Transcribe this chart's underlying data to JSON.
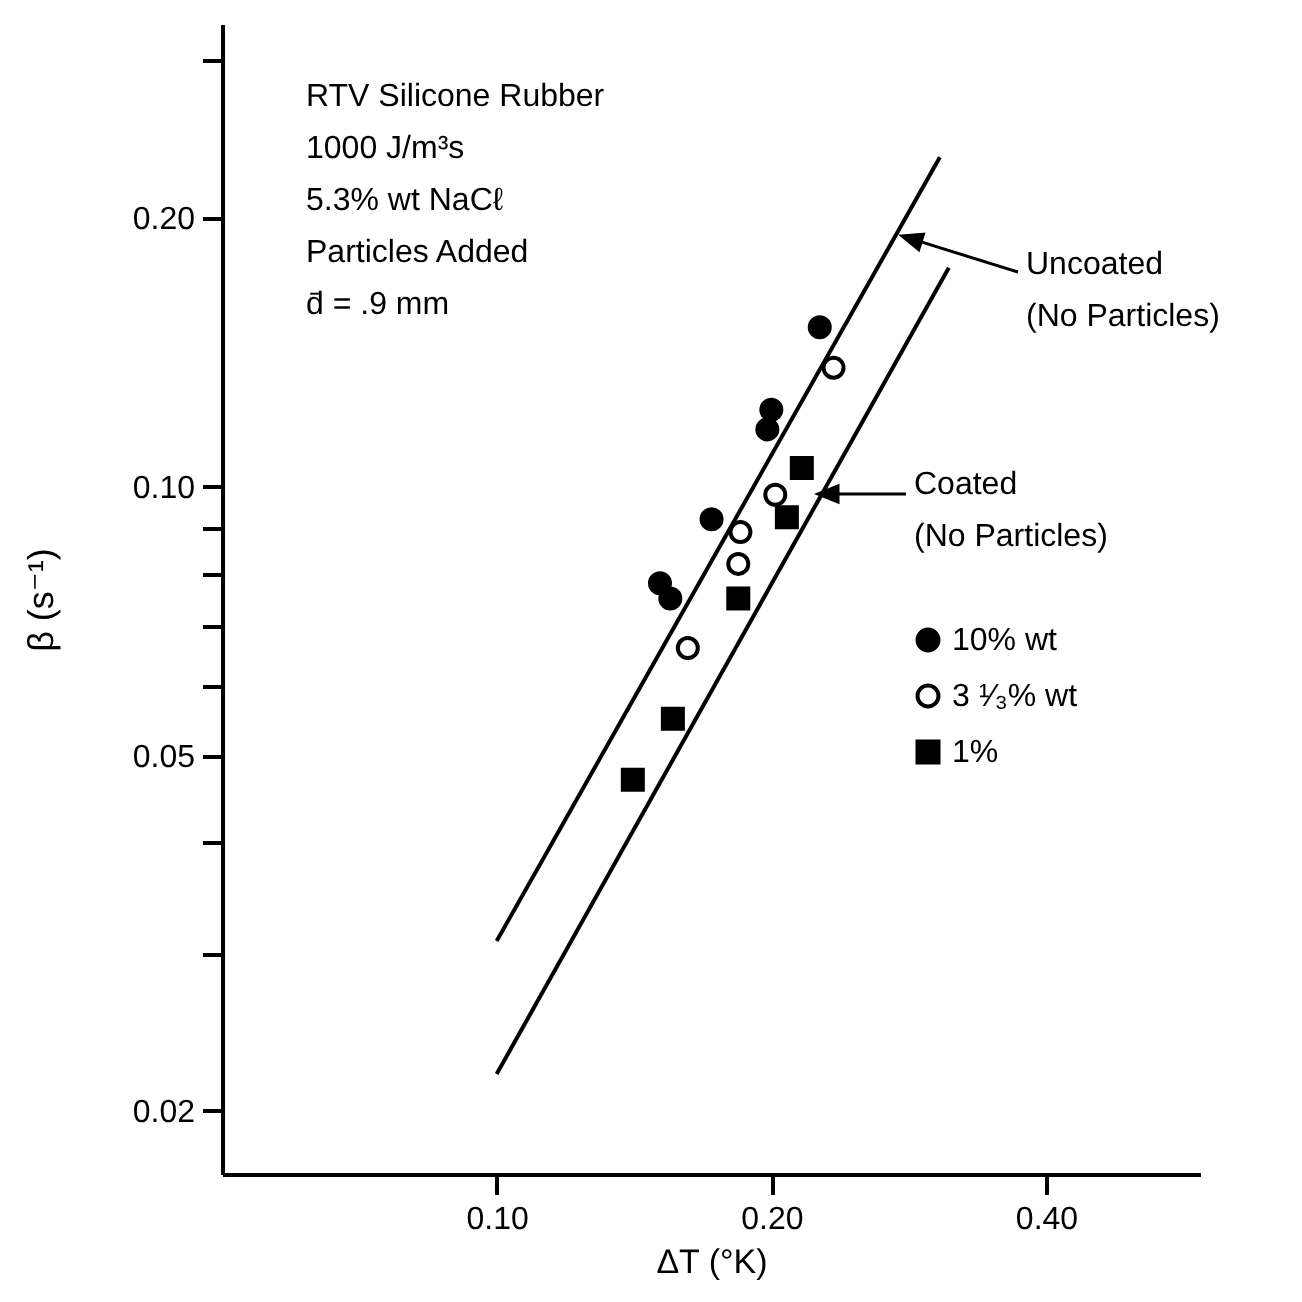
{
  "chart_data": {
    "type": "scatter",
    "log": "xy",
    "xlabel": "ΔT (°K)",
    "ylabel": "β (s⁻¹)",
    "xlim": [
      0.05,
      0.59
    ],
    "ylim": [
      0.017,
      0.33
    ],
    "xticks": [
      {
        "value": 0.1,
        "label": "0.10"
      },
      {
        "value": 0.2,
        "label": "0.20"
      },
      {
        "value": 0.4,
        "label": "0.40"
      }
    ],
    "yticks": [
      {
        "value": 0.02,
        "label": "0.02"
      },
      {
        "value": 0.03,
        "label": null
      },
      {
        "value": 0.04,
        "label": null
      },
      {
        "value": 0.05,
        "label": "0.05"
      },
      {
        "value": 0.06,
        "label": null
      },
      {
        "value": 0.07,
        "label": null
      },
      {
        "value": 0.08,
        "label": null
      },
      {
        "value": 0.09,
        "label": null
      },
      {
        "value": 0.1,
        "label": "0.10"
      },
      {
        "value": 0.2,
        "label": "0.20"
      },
      {
        "value": 0.3,
        "label": null
      }
    ],
    "grid": false,
    "legend": "right",
    "series": [
      {
        "name": "10% wt",
        "color": "#000000",
        "marker": "circle",
        "x": [
          0.226,
          0.2,
          0.198,
          0.172,
          0.151,
          0.155
        ],
        "values": [
          0.151,
          0.122,
          0.116,
          0.092,
          0.078,
          0.075
        ]
      },
      {
        "name": "3 ¹⁄₃% wt",
        "color": "#000000",
        "marker": "circle",
        "x": [
          0.234,
          0.202,
          0.185,
          0.184,
          0.162
        ],
        "values": [
          0.136,
          0.098,
          0.089,
          0.082,
          0.066
        ]
      },
      {
        "name": "1%",
        "color": "#000000",
        "marker": "square",
        "x": [
          0.216,
          0.208,
          0.184,
          0.156,
          0.141
        ],
        "values": [
          0.105,
          0.0925,
          0.075,
          0.055,
          0.047
        ]
      },
      {
        "type": "line",
        "color": "#000000",
        "marker": "none",
        "x": [
          0.1,
          0.306
        ],
        "values": [
          0.031,
          0.234
        ]
      },
      {
        "type": "line",
        "color": "#000000",
        "marker": "none",
        "x": [
          0.1,
          0.313
        ],
        "values": [
          0.022,
          0.176
        ]
      }
    ],
    "annotations": [
      "RTV Silicone Rubber\n1000 J/m³s\n5.3% wt NaCℓ\nParticles Added\nd̄ = .9 mm",
      "Uncoated\n(No Particles)",
      "Coated\n(No Particles)"
    ]
  }
}
